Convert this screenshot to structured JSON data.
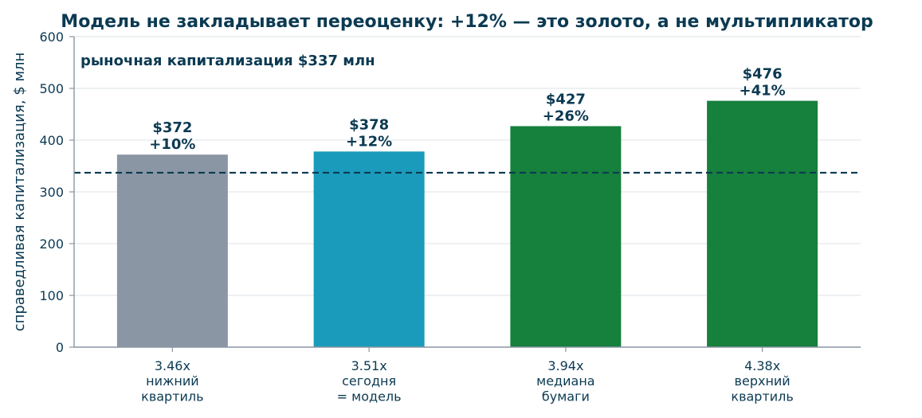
{
  "chart_data": {
    "type": "bar",
    "title": "Модель не закладывает переоценку: +12% — это золото, а не мультипликатор",
    "xlabel": "",
    "ylabel": "справедливая капитализация, $ млн",
    "ylim": [
      0,
      600
    ],
    "yticks": [
      0,
      100,
      200,
      300,
      400,
      500,
      600
    ],
    "grid": true,
    "categories": [
      [
        "3.46x",
        "нижний",
        "квартиль"
      ],
      [
        "3.51x",
        "сегодня",
        "= модель"
      ],
      [
        "3.94x",
        "медиана",
        "бумаги"
      ],
      [
        "4.38x",
        "верхний",
        "квартиль"
      ]
    ],
    "values": [
      372,
      378,
      427,
      476
    ],
    "value_labels": [
      "$372",
      "$378",
      "$427",
      "$476"
    ],
    "change_labels": [
      "+10%",
      "+12%",
      "+26%",
      "+41%"
    ],
    "colors": [
      "#8a96a3",
      "#1b9bbb",
      "#16803d",
      "#16803d"
    ],
    "reference_line": {
      "value": 337,
      "label": "рыночная капитализация $337 млн",
      "style": "dashed",
      "color": "#0b3a52"
    }
  }
}
